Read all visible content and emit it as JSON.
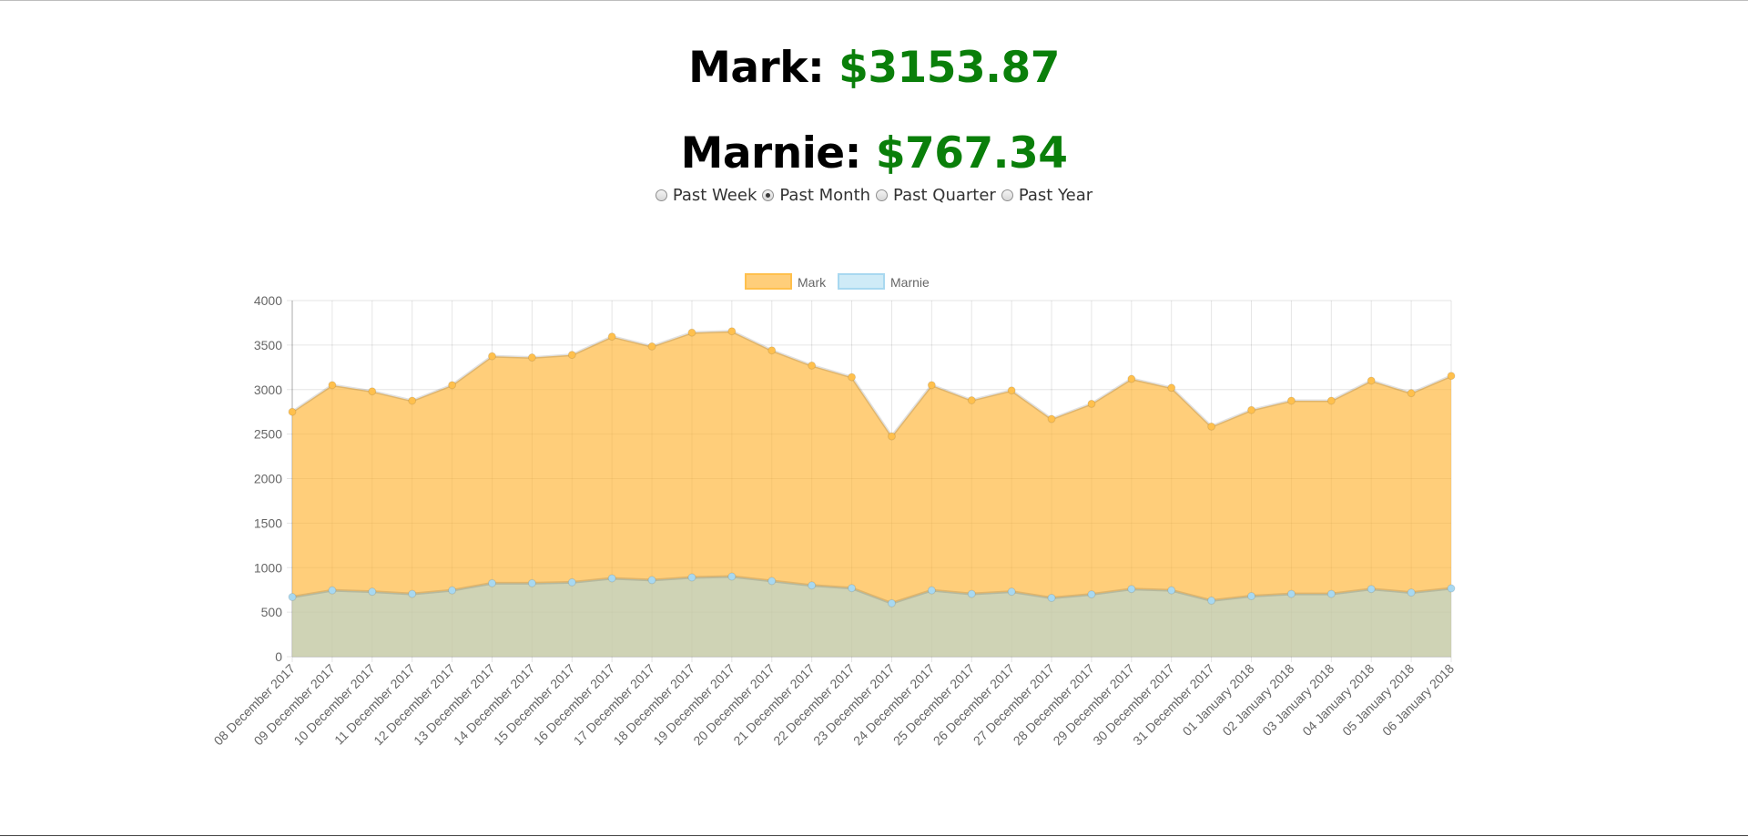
{
  "balances": {
    "mark": {
      "label": "Mark:",
      "amount": "$3153.87"
    },
    "marnie": {
      "label": "Marnie:",
      "amount": "$767.34"
    }
  },
  "range_options": [
    {
      "label": "Past Week",
      "selected": false
    },
    {
      "label": "Past Month",
      "selected": true
    },
    {
      "label": "Past Quarter",
      "selected": false
    },
    {
      "label": "Past Year",
      "selected": false
    }
  ],
  "chart_data": {
    "type": "area",
    "x": [
      "08 December 2017",
      "09 December 2017",
      "10 December 2017",
      "11 December 2017",
      "12 December 2017",
      "13 December 2017",
      "14 December 2017",
      "15 December 2017",
      "16 December 2017",
      "17 December 2017",
      "18 December 2017",
      "19 December 2017",
      "20 December 2017",
      "21 December 2017",
      "22 December 2017",
      "23 December 2017",
      "24 December 2017",
      "25 December 2017",
      "26 December 2017",
      "27 December 2017",
      "28 December 2017",
      "29 December 2017",
      "30 December 2017",
      "31 December 2017",
      "01 January 2018",
      "02 January 2018",
      "03 January 2018",
      "04 January 2018",
      "05 January 2018",
      "06 January 2018"
    ],
    "series": [
      {
        "name": "Mark",
        "color": "#ffc04d",
        "fill": "rgba(255,180,50,0.65)",
        "values": [
          2750,
          3050,
          2980,
          2875,
          3050,
          3375,
          3360,
          3390,
          3595,
          3485,
          3640,
          3655,
          3440,
          3270,
          3140,
          2475,
          3050,
          2880,
          2990,
          2670,
          2840,
          3120,
          3020,
          2585,
          2770,
          2875,
          2875,
          3100,
          2960,
          3154
        ]
      },
      {
        "name": "Marnie",
        "color": "#a8d8f0",
        "fill": "rgba(160,215,240,0.5)",
        "values": [
          670,
          745,
          730,
          705,
          745,
          825,
          825,
          835,
          880,
          860,
          890,
          900,
          850,
          800,
          770,
          600,
          745,
          705,
          730,
          660,
          700,
          760,
          745,
          630,
          680,
          705,
          705,
          760,
          720,
          767
        ]
      }
    ],
    "ylim": [
      0,
      4000
    ],
    "yticks": [
      0,
      500,
      1000,
      1500,
      2000,
      2500,
      3000,
      3500,
      4000
    ],
    "grid": true,
    "legend": "top-center"
  }
}
